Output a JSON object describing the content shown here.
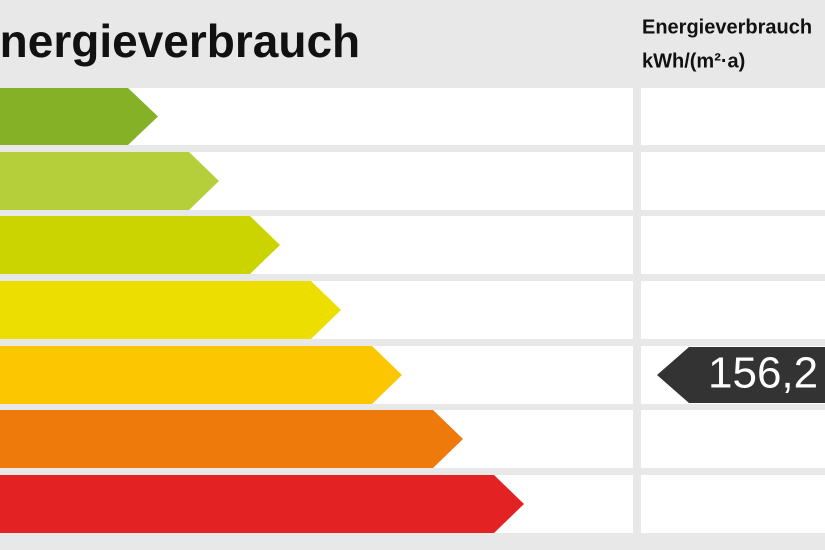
{
  "header": {
    "title": "Energieverbrauch",
    "column_title": "Energieverbrauch",
    "unit": "kWh/(m²·a)"
  },
  "marker": {
    "value": "156,2"
  }
}
